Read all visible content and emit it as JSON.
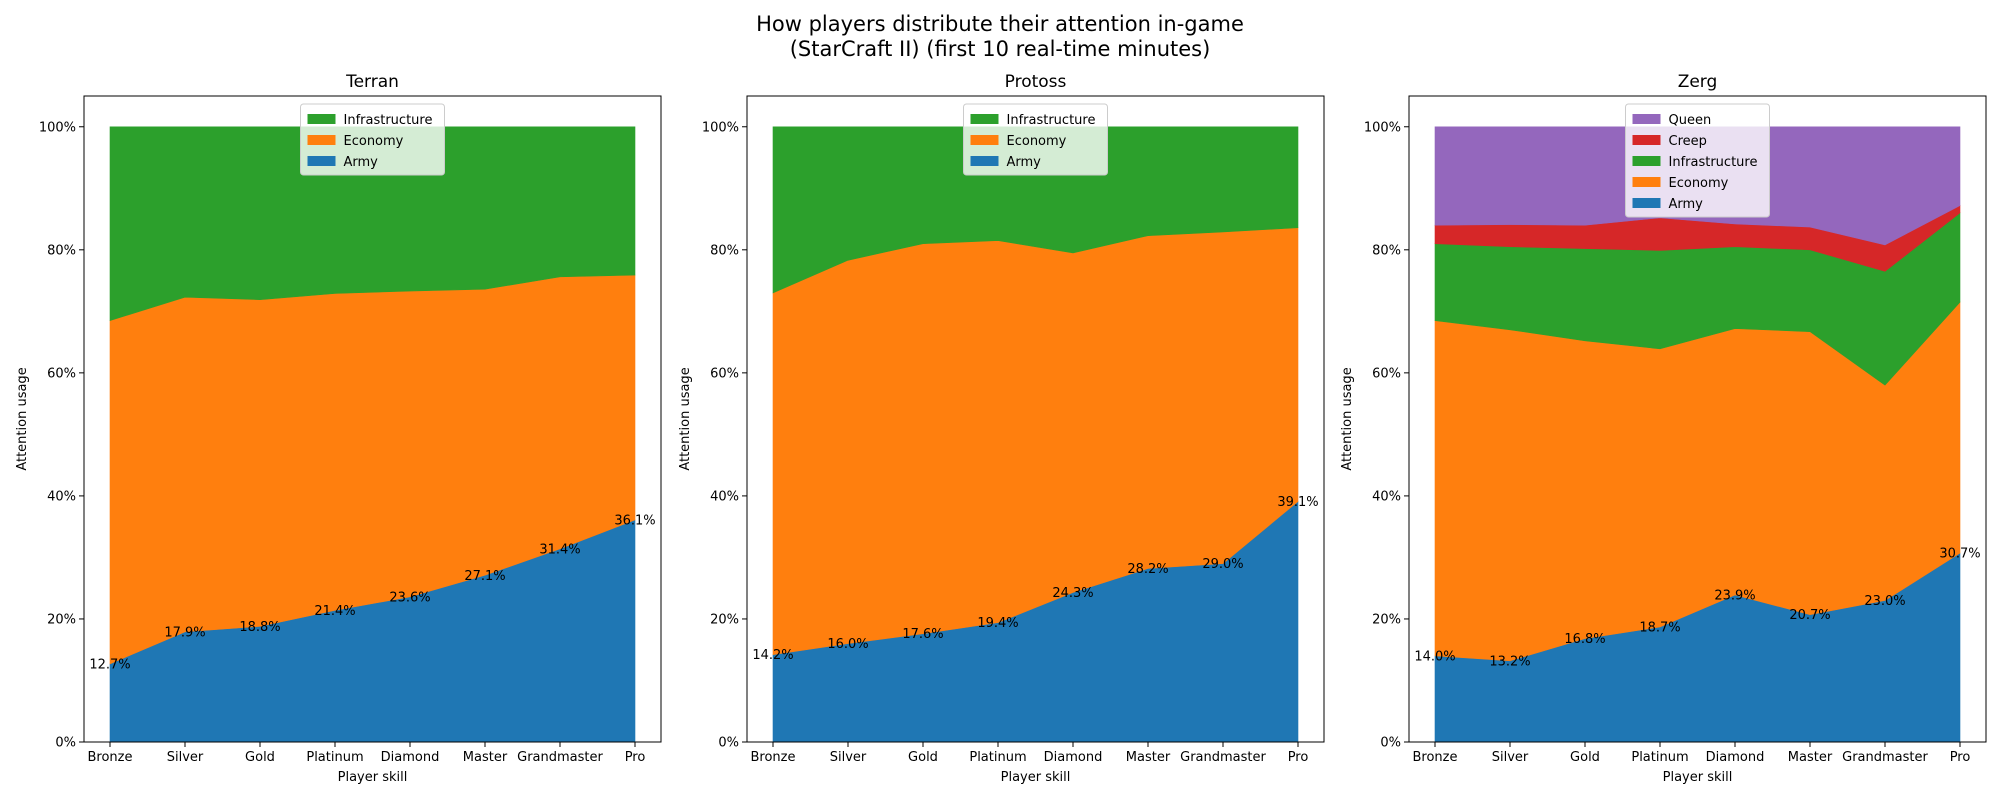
{
  "figure": {
    "title_line1": "How players distribute their attention in-game",
    "title_line2": "(StarCraft II) (first 10 real-time minutes)"
  },
  "colors": {
    "Army": "#1f77b4",
    "Economy": "#ff7f0e",
    "Infrastructure": "#2ca02c",
    "Creep": "#d62728",
    "Queen": "#9467bd"
  },
  "chart_data": [
    {
      "type": "area",
      "stacked": true,
      "normalized_percent": true,
      "title": "Terran",
      "xlabel": "Player skill",
      "ylabel": "Attention usage",
      "ylim": [
        0,
        105
      ],
      "yticks": [
        "0%",
        "20%",
        "40%",
        "60%",
        "80%",
        "100%"
      ],
      "categories": [
        "Bronze",
        "Silver",
        "Gold",
        "Platinum",
        "Diamond",
        "Master",
        "Grandmaster",
        "Pro"
      ],
      "legend_position": "top-center",
      "series": [
        {
          "name": "Army",
          "values": [
            12.7,
            17.9,
            18.8,
            21.4,
            23.6,
            27.1,
            31.4,
            36.1
          ]
        },
        {
          "name": "Economy",
          "values": [
            55.8,
            54.4,
            53.1,
            51.5,
            49.7,
            46.5,
            44.2,
            39.8
          ]
        },
        {
          "name": "Infrastructure",
          "values": [
            31.5,
            27.7,
            28.1,
            27.1,
            26.7,
            26.4,
            24.4,
            24.1
          ]
        }
      ],
      "data_labels": [
        "12.7%",
        "17.9%",
        "18.8%",
        "21.4%",
        "23.6%",
        "27.1%",
        "31.4%",
        "36.1%"
      ]
    },
    {
      "type": "area",
      "stacked": true,
      "normalized_percent": true,
      "title": "Protoss",
      "xlabel": "Player skill",
      "ylabel": "Attention usage",
      "ylim": [
        0,
        105
      ],
      "yticks": [
        "0%",
        "20%",
        "40%",
        "60%",
        "80%",
        "100%"
      ],
      "categories": [
        "Bronze",
        "Silver",
        "Gold",
        "Platinum",
        "Diamond",
        "Master",
        "Grandmaster",
        "Pro"
      ],
      "legend_position": "top-center",
      "series": [
        {
          "name": "Army",
          "values": [
            14.2,
            16.0,
            17.6,
            19.4,
            24.3,
            28.2,
            29.0,
            39.1
          ]
        },
        {
          "name": "Economy",
          "values": [
            58.8,
            62.3,
            63.4,
            62.1,
            55.2,
            54.1,
            53.9,
            44.5
          ]
        },
        {
          "name": "Infrastructure",
          "values": [
            27.0,
            21.7,
            19.0,
            18.5,
            20.5,
            17.7,
            17.1,
            16.4
          ]
        }
      ],
      "data_labels": [
        "14.2%",
        "16.0%",
        "17.6%",
        "19.4%",
        "24.3%",
        "28.2%",
        "29.0%",
        "39.1%"
      ]
    },
    {
      "type": "area",
      "stacked": true,
      "normalized_percent": true,
      "title": "Zerg",
      "xlabel": "Player skill",
      "ylabel": "Attention usage",
      "ylim": [
        0,
        105
      ],
      "yticks": [
        "0%",
        "20%",
        "40%",
        "60%",
        "80%",
        "100%"
      ],
      "categories": [
        "Bronze",
        "Silver",
        "Gold",
        "Platinum",
        "Diamond",
        "Master",
        "Grandmaster",
        "Pro"
      ],
      "legend_position": "top-center",
      "series": [
        {
          "name": "Army",
          "values": [
            14.0,
            13.2,
            16.8,
            18.7,
            23.9,
            20.7,
            23.0,
            30.7
          ]
        },
        {
          "name": "Economy",
          "values": [
            54.5,
            53.8,
            48.4,
            45.2,
            43.3,
            46.0,
            35.0,
            40.8
          ]
        },
        {
          "name": "Infrastructure",
          "values": [
            12.5,
            13.5,
            15.0,
            16.0,
            13.3,
            13.3,
            18.5,
            14.5
          ]
        },
        {
          "name": "Creep",
          "values": [
            3.0,
            3.6,
            3.8,
            5.3,
            3.7,
            3.7,
            4.3,
            1.2
          ]
        },
        {
          "name": "Queen",
          "values": [
            16.0,
            15.9,
            16.0,
            14.8,
            15.8,
            16.3,
            19.2,
            12.8
          ]
        }
      ],
      "data_labels": [
        "14.0%",
        "13.2%",
        "16.8%",
        "18.7%",
        "23.9%",
        "20.7%",
        "23.0%",
        "30.7%"
      ]
    }
  ]
}
